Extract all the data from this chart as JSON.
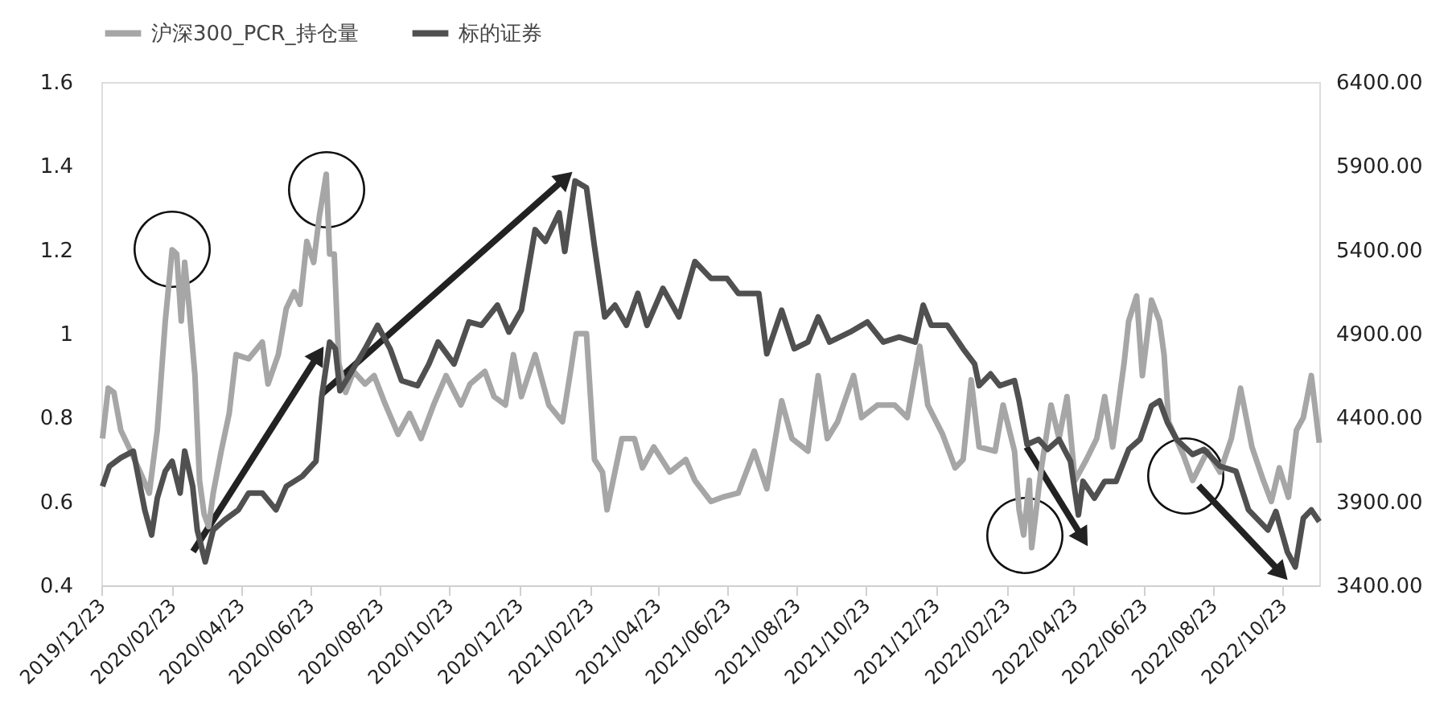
{
  "chart_data": {
    "type": "line",
    "xlim": [
      "2019-12-23",
      "2022-11-24"
    ],
    "xticks": [
      {
        "value": "2019-12-23",
        "label": "2019/12/23"
      },
      {
        "value": "2020-02-23",
        "label": "2020/02/23"
      },
      {
        "value": "2020-04-23",
        "label": "2020/04/23"
      },
      {
        "value": "2020-06-23",
        "label": "2020/06/23"
      },
      {
        "value": "2020-08-23",
        "label": "2020/08/23"
      },
      {
        "value": "2020-10-23",
        "label": "2020/10/23"
      },
      {
        "value": "2020-12-23",
        "label": "2020/12/23"
      },
      {
        "value": "2021-02-23",
        "label": "2021/02/23"
      },
      {
        "value": "2021-04-23",
        "label": "2021/04/23"
      },
      {
        "value": "2021-06-23",
        "label": "2021/06/23"
      },
      {
        "value": "2021-08-23",
        "label": "2021/08/23"
      },
      {
        "value": "2021-10-23",
        "label": "2021/10/23"
      },
      {
        "value": "2021-12-23",
        "label": "2021/12/23"
      },
      {
        "value": "2022-02-23",
        "label": "2022/02/23"
      },
      {
        "value": "2022-04-23",
        "label": "2022/04/23"
      },
      {
        "value": "2022-06-23",
        "label": "2022/06/23"
      },
      {
        "value": "2022-08-23",
        "label": "2022/08/23"
      },
      {
        "value": "2022-10-23",
        "label": "2022/10/23"
      }
    ],
    "ylim": [
      0.4,
      1.6
    ],
    "yticks": [
      0.4,
      0.6,
      0.8,
      1,
      1.2,
      1.4,
      1.6
    ],
    "y2lim": [
      3400,
      6400
    ],
    "y2ticks": [
      {
        "value": 3400,
        "label": "3400.00"
      },
      {
        "value": 3900,
        "label": "3900.00"
      },
      {
        "value": 4400,
        "label": "4400.00"
      },
      {
        "value": 4900,
        "label": "4900.00"
      },
      {
        "value": 5400,
        "label": "5400.00"
      },
      {
        "value": 5900,
        "label": "5900.00"
      },
      {
        "value": 6400,
        "label": "6400.00"
      }
    ],
    "grid": false,
    "legend": "top",
    "line_style": "solid",
    "marker": "none",
    "series": [
      {
        "name": "沪深300_PCR_持仓量",
        "color": "#a6a6a6",
        "x": [
          "2019-12-24",
          "2019-12-29",
          "2020-01-03",
          "2020-01-09",
          "2020-01-16",
          "2020-01-26",
          "2020-02-03",
          "2020-02-10",
          "2020-02-17",
          "2020-02-23",
          "2020-02-27",
          "2020-03-02",
          "2020-03-05",
          "2020-03-09",
          "2020-03-14",
          "2020-03-18",
          "2020-03-22",
          "2020-03-26",
          "2020-03-30",
          "2020-04-06",
          "2020-04-13",
          "2020-04-19",
          "2020-04-30",
          "2020-05-12",
          "2020-05-17",
          "2020-05-26",
          "2020-06-02",
          "2020-06-09",
          "2020-06-14",
          "2020-06-20",
          "2020-06-26",
          "2020-07-01",
          "2020-07-07",
          "2020-07-10",
          "2020-07-14",
          "2020-07-18",
          "2020-07-24",
          "2020-07-31",
          "2020-08-10",
          "2020-08-18",
          "2020-08-28",
          "2020-09-08",
          "2020-09-18",
          "2020-09-28",
          "2020-10-09",
          "2020-10-20",
          "2020-11-02",
          "2020-11-10",
          "2020-11-23",
          "2020-12-01",
          "2020-12-11",
          "2020-12-18",
          "2020-12-25",
          "2021-01-06",
          "2021-01-18",
          "2021-01-30",
          "2021-02-06",
          "2021-02-11",
          "2021-02-20",
          "2021-02-27",
          "2021-03-06",
          "2021-03-10",
          "2021-03-23",
          "2021-04-03",
          "2021-04-10",
          "2021-04-20",
          "2021-05-04",
          "2021-05-18",
          "2021-05-26",
          "2021-06-09",
          "2021-06-19",
          "2021-07-03",
          "2021-07-17",
          "2021-07-28",
          "2021-08-10",
          "2021-08-19",
          "2021-09-02",
          "2021-09-11",
          "2021-09-19",
          "2021-09-28",
          "2021-10-12",
          "2021-10-19",
          "2021-11-02",
          "2021-11-17",
          "2021-11-28",
          "2021-12-09",
          "2021-12-16",
          "2021-12-29",
          "2022-01-09",
          "2022-01-16",
          "2022-01-23",
          "2022-01-30",
          "2022-02-13",
          "2022-02-20",
          "2022-03-02",
          "2022-03-06",
          "2022-03-10",
          "2022-03-15",
          "2022-03-17",
          "2022-03-25",
          "2022-04-03",
          "2022-04-10",
          "2022-04-17",
          "2022-04-24",
          "2022-05-04",
          "2022-05-13",
          "2022-05-20",
          "2022-05-27",
          "2022-06-06",
          "2022-06-10",
          "2022-06-17",
          "2022-06-22",
          "2022-06-30",
          "2022-07-07",
          "2022-07-11",
          "2022-07-15",
          "2022-07-28",
          "2022-08-05",
          "2022-08-18",
          "2022-08-29",
          "2022-09-08",
          "2022-09-16",
          "2022-09-26",
          "2022-10-06",
          "2022-10-13",
          "2022-10-20",
          "2022-10-28",
          "2022-11-04",
          "2022-11-10",
          "2022-11-17",
          "2022-11-24"
        ],
        "values": [
          0.75,
          0.87,
          0.86,
          0.77,
          0.73,
          0.67,
          0.62,
          0.77,
          1.03,
          1.2,
          1.19,
          1.03,
          1.17,
          1.06,
          0.9,
          0.65,
          0.57,
          0.54,
          0.62,
          0.72,
          0.81,
          0.95,
          0.94,
          0.98,
          0.88,
          0.95,
          1.06,
          1.1,
          1.07,
          1.22,
          1.17,
          1.28,
          1.38,
          1.19,
          1.19,
          0.93,
          0.86,
          0.91,
          0.88,
          0.9,
          0.83,
          0.76,
          0.81,
          0.75,
          0.83,
          0.9,
          0.83,
          0.88,
          0.91,
          0.85,
          0.83,
          0.95,
          0.85,
          0.95,
          0.83,
          0.79,
          0.91,
          1.0,
          1.0,
          0.7,
          0.67,
          0.58,
          0.75,
          0.75,
          0.68,
          0.73,
          0.67,
          0.7,
          0.65,
          0.6,
          0.61,
          0.62,
          0.72,
          0.63,
          0.84,
          0.75,
          0.72,
          0.9,
          0.75,
          0.79,
          0.9,
          0.8,
          0.83,
          0.83,
          0.8,
          0.97,
          0.83,
          0.76,
          0.68,
          0.7,
          0.89,
          0.73,
          0.72,
          0.83,
          0.72,
          0.58,
          0.52,
          0.65,
          0.49,
          0.67,
          0.83,
          0.75,
          0.85,
          0.65,
          0.7,
          0.75,
          0.85,
          0.73,
          0.93,
          1.03,
          1.09,
          0.9,
          1.08,
          1.03,
          0.95,
          0.79,
          0.71,
          0.65,
          0.72,
          0.67,
          0.75,
          0.87,
          0.73,
          0.65,
          0.6,
          0.68,
          0.61,
          0.77,
          0.8,
          0.9,
          0.74
        ]
      },
      {
        "name": "标的证券",
        "color": "#505050",
        "axis": "y2",
        "x": [
          "2019-12-24",
          "2019-12-30",
          "2020-01-09",
          "2020-01-20",
          "2020-01-26",
          "2020-01-30",
          "2020-02-05",
          "2020-02-10",
          "2020-02-17",
          "2020-02-23",
          "2020-03-01",
          "2020-03-05",
          "2020-03-12",
          "2020-03-16",
          "2020-03-23",
          "2020-03-30",
          "2020-04-09",
          "2020-04-21",
          "2020-04-30",
          "2020-05-12",
          "2020-05-24",
          "2020-06-02",
          "2020-06-16",
          "2020-06-28",
          "2020-07-03",
          "2020-07-10",
          "2020-07-15",
          "2020-07-19",
          "2020-07-28",
          "2020-08-10",
          "2020-08-21",
          "2020-09-01",
          "2020-09-11",
          "2020-09-25",
          "2020-10-05",
          "2020-10-13",
          "2020-10-27",
          "2020-11-09",
          "2020-11-20",
          "2020-12-04",
          "2020-12-14",
          "2020-12-25",
          "2021-01-06",
          "2021-01-15",
          "2021-01-27",
          "2021-02-01",
          "2021-02-10",
          "2021-02-20",
          "2021-02-27",
          "2021-03-08",
          "2021-03-17",
          "2021-03-27",
          "2021-04-06",
          "2021-04-14",
          "2021-04-28",
          "2021-05-12",
          "2021-05-26",
          "2021-06-09",
          "2021-06-23",
          "2021-07-03",
          "2021-07-21",
          "2021-07-28",
          "2021-08-10",
          "2021-08-21",
          "2021-09-02",
          "2021-09-11",
          "2021-09-21",
          "2021-10-09",
          "2021-10-24",
          "2021-11-07",
          "2021-11-21",
          "2021-12-05",
          "2021-12-12",
          "2021-12-19",
          "2022-01-02",
          "2022-01-16",
          "2022-01-26",
          "2022-01-30",
          "2022-02-09",
          "2022-02-17",
          "2022-03-02",
          "2022-03-06",
          "2022-03-13",
          "2022-03-23",
          "2022-03-31",
          "2022-04-10",
          "2022-04-20",
          "2022-04-27",
          "2022-05-01",
          "2022-05-11",
          "2022-05-20",
          "2022-05-30",
          "2022-06-10",
          "2022-06-20",
          "2022-06-30",
          "2022-07-07",
          "2022-07-14",
          "2022-07-22",
          "2022-08-05",
          "2022-08-15",
          "2022-08-29",
          "2022-09-12",
          "2022-09-23",
          "2022-10-10",
          "2022-10-17",
          "2022-10-27",
          "2022-11-03",
          "2022-11-10",
          "2022-11-17",
          "2022-11-24"
        ],
        "values": [
          3990,
          4110,
          4160,
          4200,
          3990,
          3850,
          3700,
          3920,
          4080,
          4140,
          3950,
          4200,
          3990,
          3730,
          3540,
          3730,
          3790,
          3850,
          3950,
          3950,
          3850,
          3990,
          4050,
          4140,
          4520,
          4850,
          4810,
          4560,
          4660,
          4810,
          4950,
          4810,
          4620,
          4590,
          4720,
          4850,
          4720,
          4970,
          4950,
          5070,
          4910,
          5040,
          5520,
          5450,
          5620,
          5390,
          5810,
          5770,
          5420,
          5000,
          5070,
          4950,
          5140,
          4950,
          5170,
          5000,
          5330,
          5230,
          5230,
          5140,
          5140,
          4780,
          5040,
          4810,
          4850,
          5000,
          4850,
          4910,
          4970,
          4850,
          4880,
          4850,
          5070,
          4950,
          4950,
          4810,
          4720,
          4590,
          4660,
          4590,
          4620,
          4500,
          4240,
          4270,
          4210,
          4270,
          4140,
          3820,
          4020,
          3920,
          4020,
          4020,
          4210,
          4270,
          4470,
          4500,
          4370,
          4270,
          4180,
          4210,
          4110,
          4080,
          3850,
          3730,
          3840,
          3600,
          3510,
          3800,
          3850,
          3780
        ]
      }
    ]
  }
}
